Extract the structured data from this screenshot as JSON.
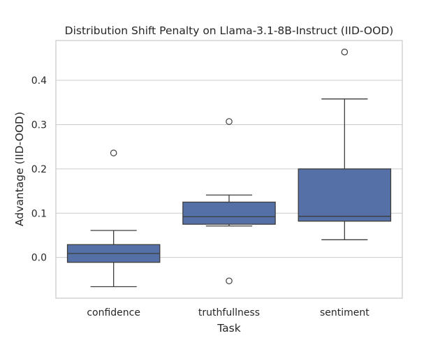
{
  "chart_data": {
    "type": "box",
    "title": "Distribution Shift Penalty on Llama-3.1-8B-Instruct (IID-OOD)",
    "xlabel": "Task",
    "ylabel": "Advantage (IID-OOD)",
    "ylim": [
      -0.092,
      0.49
    ],
    "yticks": [
      "0.0",
      "0.1",
      "0.2",
      "0.3",
      "0.4"
    ],
    "grid": true,
    "categories": [
      "confidence",
      "truthfullness",
      "sentiment"
    ],
    "boxes": [
      {
        "category": "confidence",
        "whisker_low": -0.066,
        "q1": -0.011,
        "median": 0.009,
        "q3": 0.029,
        "whisker_high": 0.061,
        "outliers": [
          0.236
        ]
      },
      {
        "category": "truthfullness",
        "whisker_low": 0.071,
        "q1": 0.075,
        "median": 0.092,
        "q3": 0.125,
        "whisker_high": 0.141,
        "outliers": [
          0.307,
          -0.053
        ]
      },
      {
        "category": "sentiment",
        "whisker_low": 0.04,
        "q1": 0.082,
        "median": 0.093,
        "q3": 0.2,
        "whisker_high": 0.358,
        "outliers": [
          0.464
        ]
      }
    ],
    "colors": {
      "box_fill": "#5470a6",
      "line": "#3d3d3d",
      "grid": "#cccccc",
      "spine": "#cccccc"
    }
  }
}
